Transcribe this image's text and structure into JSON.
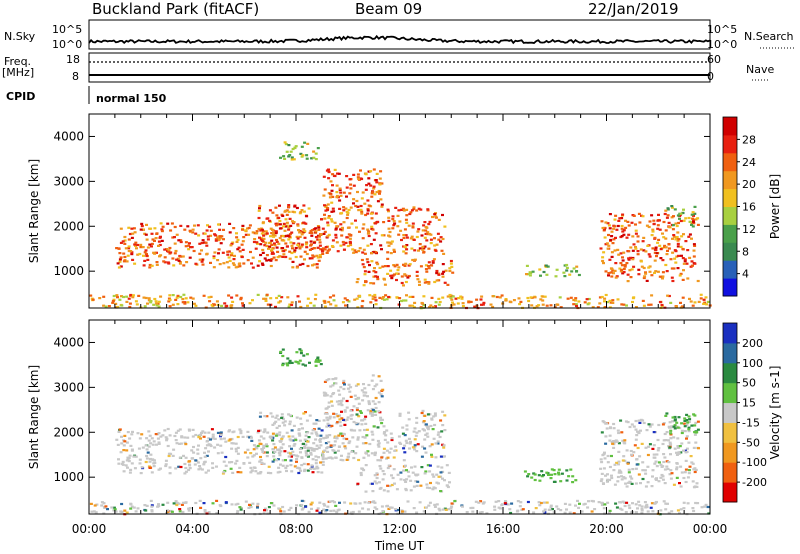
{
  "header": {
    "station": "Buckland Park (fitACF)",
    "beam": "Beam 09",
    "date": "22/Jan/2019"
  },
  "side_labels": {
    "nsky": "N.Sky",
    "nsearch": "N.Search",
    "freq": "Freq.",
    "mhz": "[MHz]",
    "nave": "Nave",
    "cpid": "CPID",
    "cpid_value": "normal 150",
    "nsky_ticks": [
      "10^5",
      "10^0"
    ],
    "freq_ticks": [
      "18",
      "8"
    ],
    "nave_ticks": [
      "60",
      "0"
    ]
  },
  "chart_data": [
    {
      "type": "heatmap",
      "panel": "power",
      "ylabel": "Slant Range [km]",
      "ylim": [
        180,
        4500
      ],
      "yticks": [
        1000,
        2000,
        3000,
        4000
      ],
      "colorbar": {
        "label": "Power [dB]",
        "ticks": [
          4,
          8,
          12,
          16,
          20,
          24,
          28
        ],
        "range": [
          0,
          32
        ],
        "colors": [
          "#1010e0",
          "#2860b8",
          "#3a8a50",
          "#4aa04a",
          "#a8d040",
          "#f0c020",
          "#f09820",
          "#f06010",
          "#e82010",
          "#d00000"
        ]
      },
      "scatter_regions": [
        {
          "t_range": [
            0.0,
            24.0
          ],
          "r_range": [
            200,
            500
          ],
          "level": "mid"
        },
        {
          "t_range": [
            1.0,
            9.0
          ],
          "r_range": [
            1100,
            2100
          ],
          "level": "high"
        },
        {
          "t_range": [
            6.5,
            13.7
          ],
          "r_range": [
            1400,
            2500
          ],
          "level": "high"
        },
        {
          "t_range": [
            9.0,
            11.3
          ],
          "r_range": [
            2500,
            3300
          ],
          "level": "high"
        },
        {
          "t_range": [
            7.3,
            9.0
          ],
          "r_range": [
            3500,
            3900
          ],
          "level": "low"
        },
        {
          "t_range": [
            10.3,
            14.0
          ],
          "r_range": [
            700,
            1300
          ],
          "level": "high"
        },
        {
          "t_range": [
            16.8,
            19.0
          ],
          "r_range": [
            900,
            1200
          ],
          "level": "low"
        },
        {
          "t_range": [
            19.7,
            23.5
          ],
          "r_range": [
            800,
            2300
          ],
          "level": "high"
        },
        {
          "t_range": [
            22.2,
            23.5
          ],
          "r_range": [
            2000,
            2500
          ],
          "level": "low"
        }
      ]
    },
    {
      "type": "heatmap",
      "panel": "velocity",
      "ylabel": "Slant Range [km]",
      "ylim": [
        180,
        4500
      ],
      "yticks": [
        1000,
        2000,
        3000,
        4000
      ],
      "colorbar": {
        "label": "Velocity [m s-1]",
        "ticks": [
          -200,
          -100,
          -50,
          -15,
          15,
          50,
          100,
          200
        ],
        "colors": [
          "#e00000",
          "#f06010",
          "#f09820",
          "#f0c040",
          "#c8c8c8",
          "#60c040",
          "#2a8a40",
          "#2a6aa0",
          "#1a30c0"
        ]
      },
      "x": {
        "xlabel": "Time UT",
        "xlim": [
          0,
          24
        ],
        "xticks": [
          "00:00",
          "04:00",
          "08:00",
          "12:00",
          "16:00",
          "20:00",
          "00:00"
        ]
      }
    }
  ]
}
